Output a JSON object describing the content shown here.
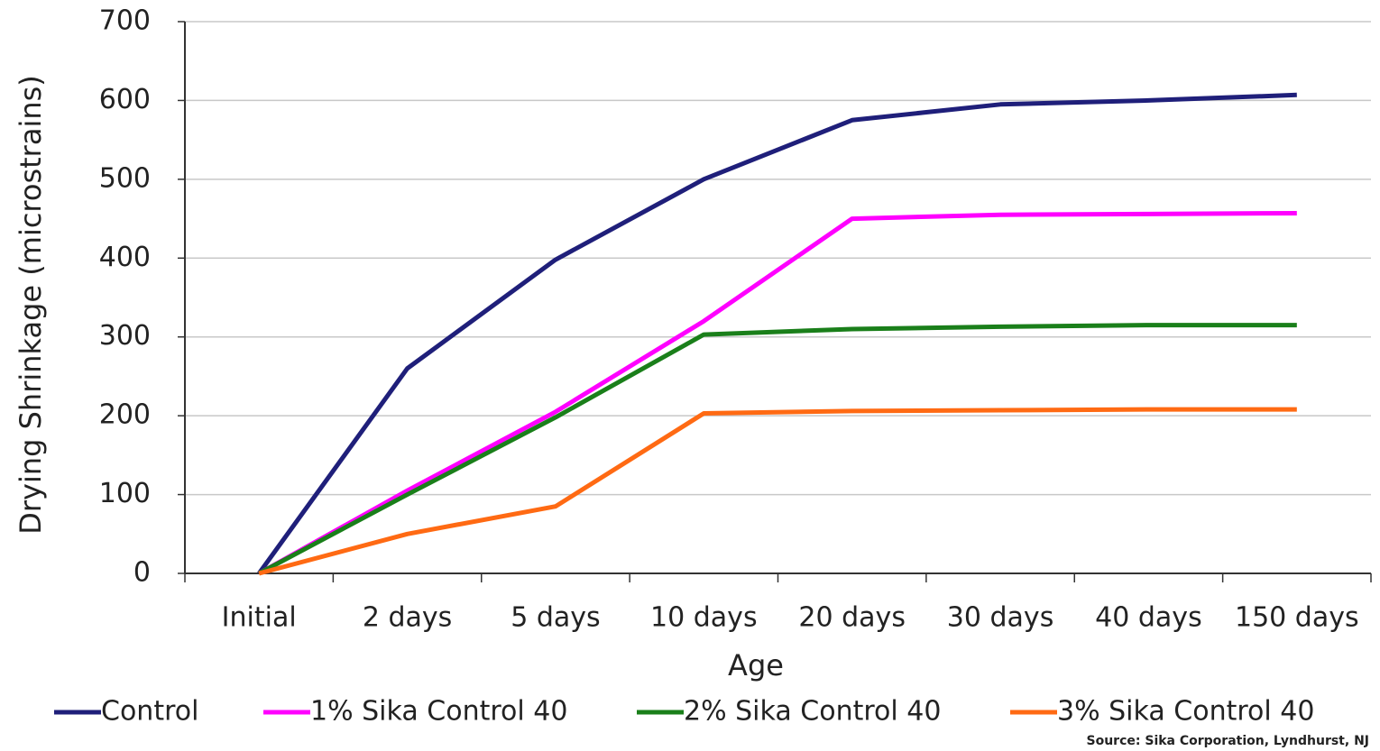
{
  "chart_data": {
    "type": "line",
    "y_label": "Drying Shrinkage (microstrains)",
    "x_label": "Age",
    "annotation": "Source: Sika Corporation, Lyndhurst, NJ",
    "categories": [
      "Initial",
      "2 days",
      "5 days",
      "10 days",
      "20 days",
      "30 days",
      "40 days",
      "150 days"
    ],
    "series": [
      {
        "name": "Control",
        "color": "#1f1f7a",
        "values": [
          0,
          260,
          398,
          500,
          575,
          595,
          600,
          607
        ]
      },
      {
        "name": "1% Sika Control 40",
        "color": "#ff00ff",
        "values": [
          0,
          105,
          205,
          320,
          450,
          455,
          456,
          457
        ]
      },
      {
        "name": "2% Sika Control 40",
        "color": "#1a7f1a",
        "values": [
          0,
          100,
          198,
          303,
          310,
          313,
          315,
          315
        ]
      },
      {
        "name": "3% Sika Control 40",
        "color": "#ff6a13",
        "values": [
          0,
          50,
          85,
          203,
          206,
          207,
          208,
          208
        ]
      }
    ],
    "ylim": [
      0,
      700
    ],
    "yticks": [
      0,
      100,
      200,
      300,
      400,
      500,
      600,
      700
    ],
    "grid": true,
    "legend": "bottom"
  }
}
